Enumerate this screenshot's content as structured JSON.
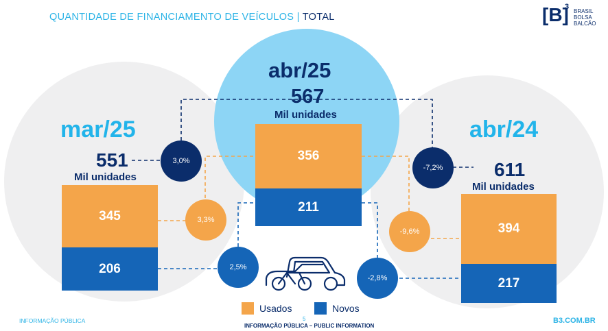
{
  "header": {
    "title": "QUANTIDADE DE FINANCIAMENTO DE VEÍCULOS",
    "separator": "|",
    "subtitle": "TOTAL"
  },
  "logo": {
    "mark": "[B]",
    "superscript": "3",
    "line1": "BRASIL",
    "line2": "BOLSA",
    "line3": "BALCÃO"
  },
  "colors": {
    "usados": "#f4a54a",
    "novos": "#1565b7",
    "dark_blue": "#0b2d6b",
    "accent": "#2bb3e6",
    "highlight_circle": "#8dd5f5",
    "bg_circle": "#efeff0"
  },
  "chart_data": {
    "type": "bar",
    "stacked": true,
    "categories": [
      "mar/25",
      "abr/25",
      "abr/24"
    ],
    "series": [
      {
        "name": "Usados",
        "values": [
          345,
          356,
          394
        ]
      },
      {
        "name": "Novos",
        "values": [
          206,
          211,
          217
        ]
      }
    ],
    "totals": [
      {
        "period": "mar/25",
        "value": "551",
        "unit": "Mil unidades"
      },
      {
        "period": "abr/25",
        "value": "567",
        "unit": "Mil unidades"
      },
      {
        "period": "abr/24",
        "value": "611",
        "unit": "Mil unidades"
      }
    ],
    "variations": [
      {
        "label": "3,0%",
        "kind": "total",
        "vs": "mar/25"
      },
      {
        "label": "3,3%",
        "kind": "usados",
        "vs": "mar/25"
      },
      {
        "label": "2,5%",
        "kind": "novos",
        "vs": "mar/25"
      },
      {
        "label": "-7,2%",
        "kind": "total",
        "vs": "abr/24"
      },
      {
        "label": "-9,6%",
        "kind": "usados",
        "vs": "abr/24"
      },
      {
        "label": "-2,8%",
        "kind": "novos",
        "vs": "abr/24"
      }
    ],
    "legend": [
      "Usados",
      "Novos"
    ],
    "legend_position": "bottom-center",
    "grid": false
  },
  "footer": {
    "left": "INFORMAÇÃO PÚBLICA",
    "page": "5",
    "center": "INFORMAÇÃO PÚBLICA – PUBLIC INFORMATION",
    "right": "B3.COM.BR"
  }
}
